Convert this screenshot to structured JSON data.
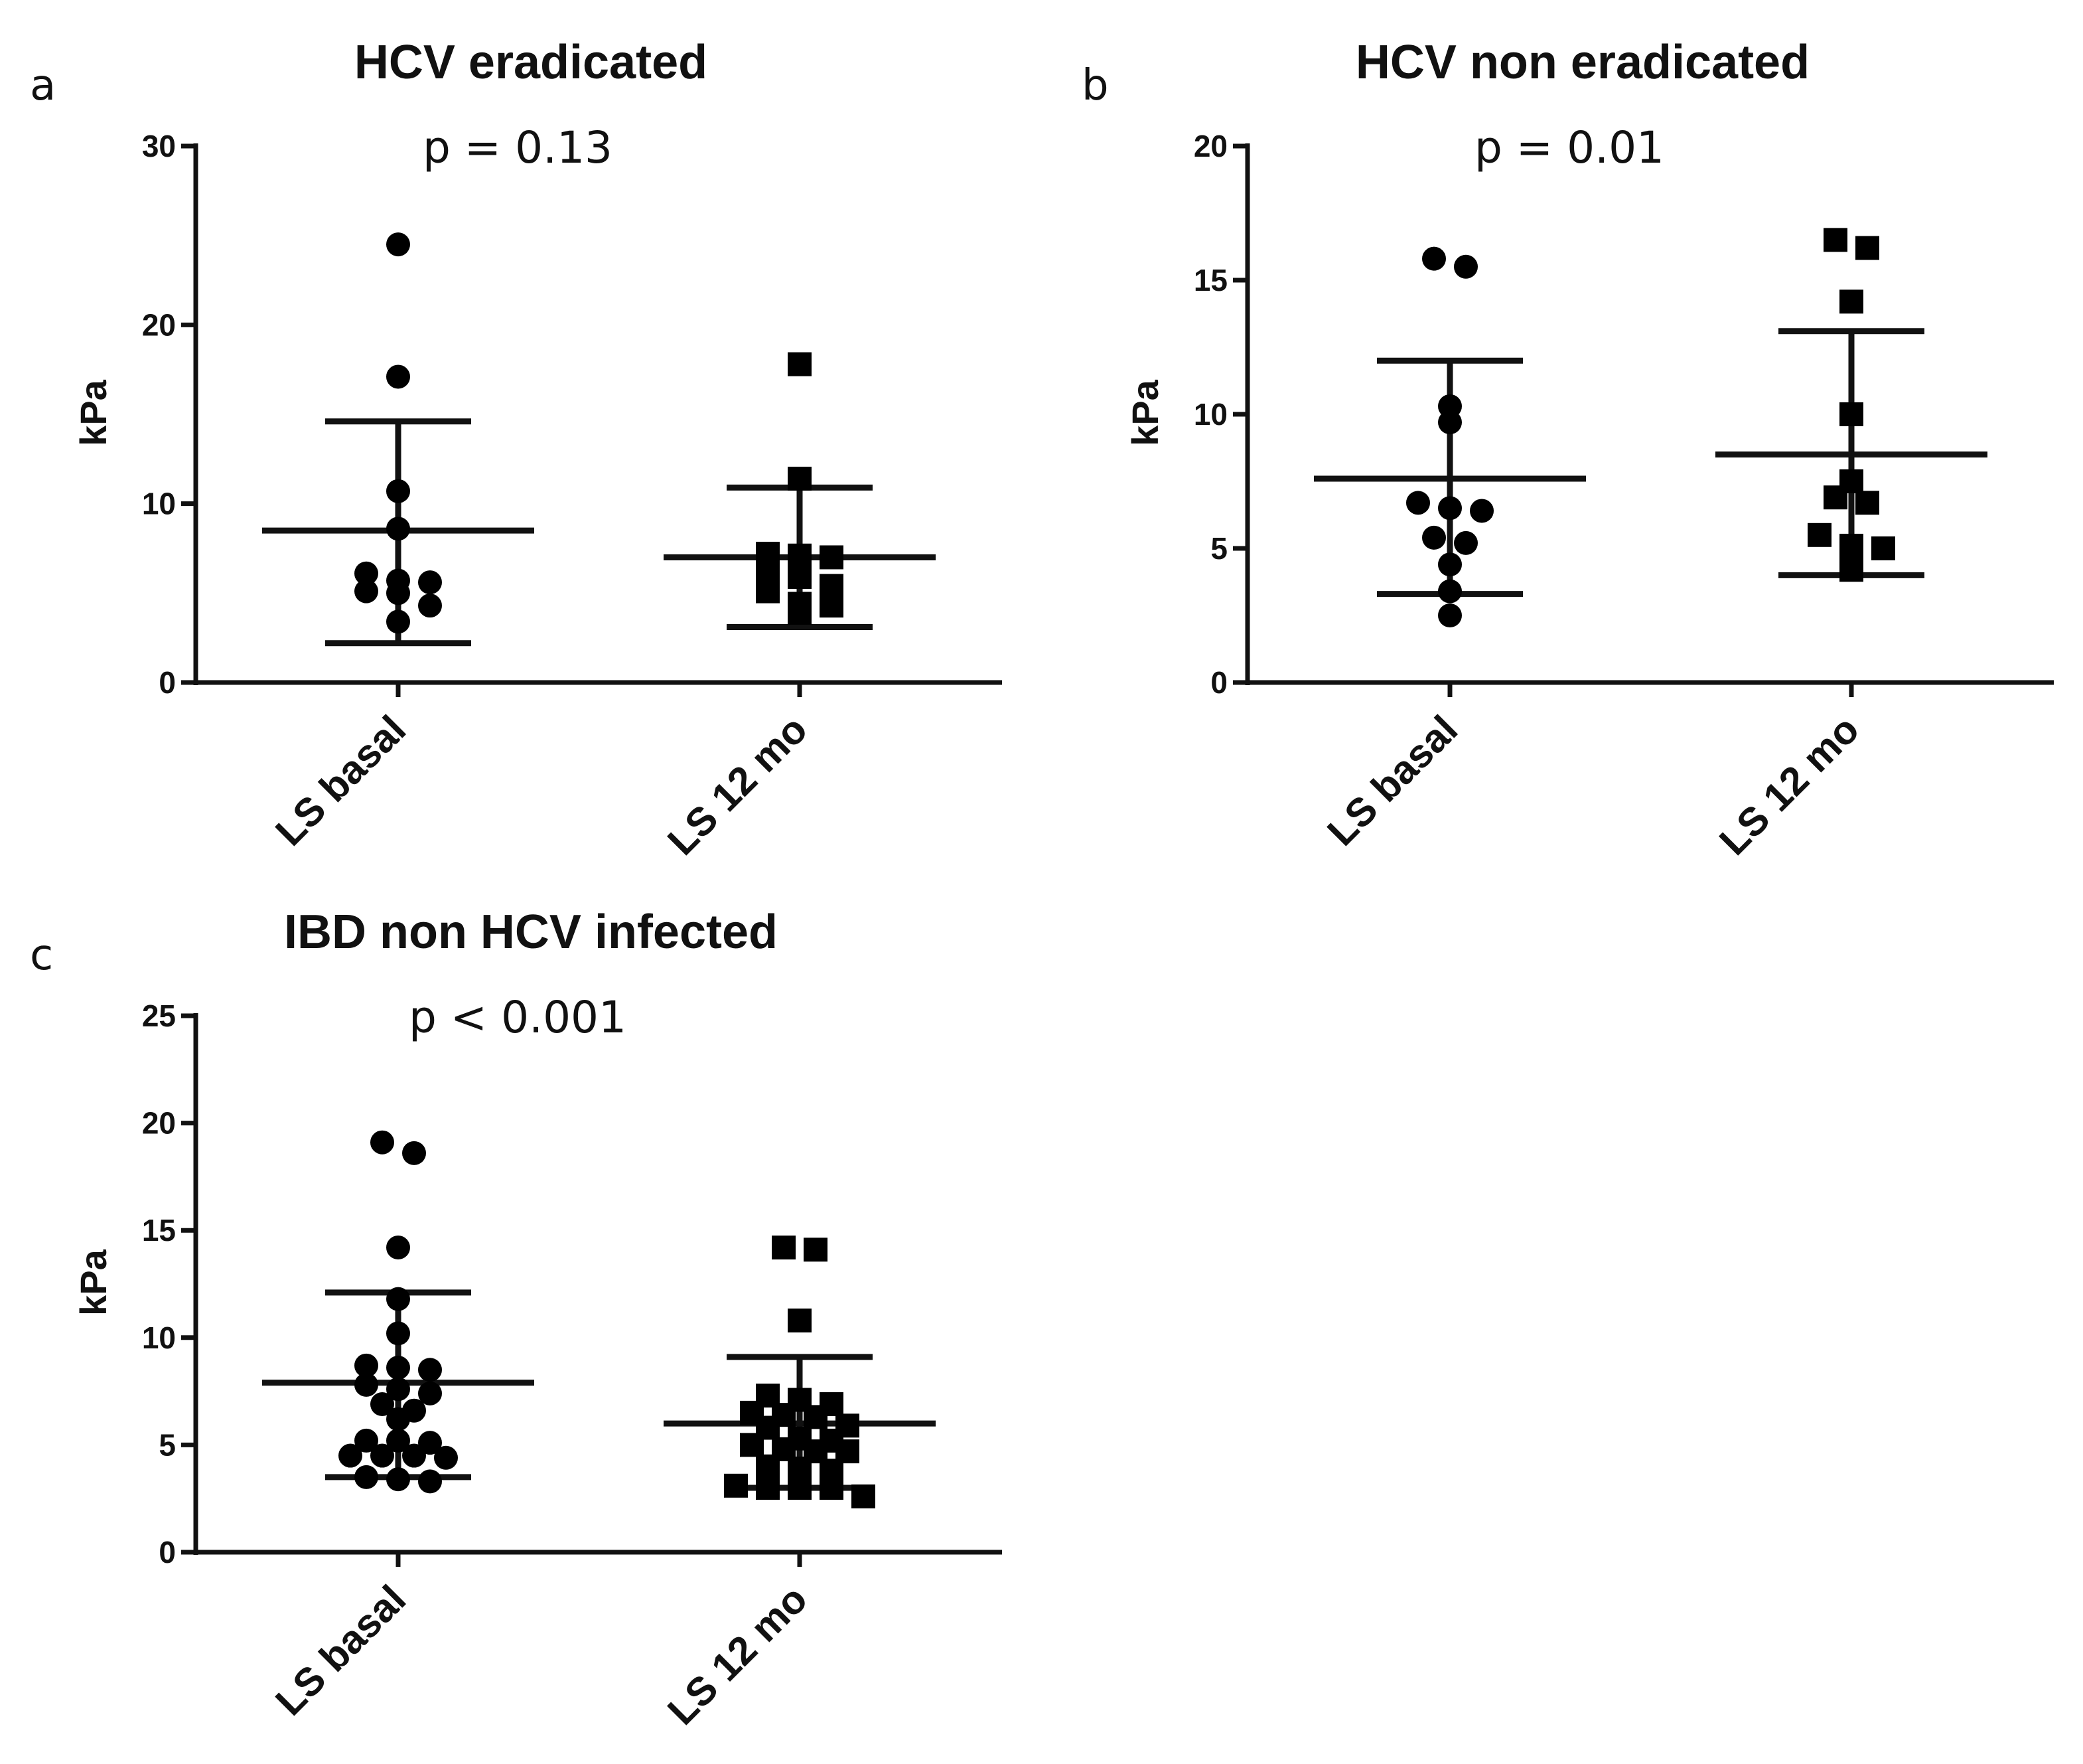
{
  "chart_data": [
    {
      "panel": "a",
      "type": "scatter",
      "title": "HCV eradicated",
      "annotation": "p = 0.13",
      "ylabel": "kPa",
      "ylim": [
        0,
        30
      ],
      "yticks": [
        0,
        10,
        20,
        30
      ],
      "ytick_labels": [
        "0",
        "10",
        "20",
        "30"
      ],
      "categories": [
        "LS basal",
        "LS 12 mo"
      ],
      "series": [
        {
          "name": "LS basal",
          "marker": "circle",
          "values": [
            24.5,
            17.1,
            10.7,
            8.6,
            6.1,
            5.6,
            5.7,
            5.1,
            5.0,
            4.3,
            3.4
          ],
          "mean": 8.5,
          "sd_low": 2.2,
          "sd_high": 14.6
        },
        {
          "name": "LS 12 mo",
          "marker": "square",
          "values": [
            17.8,
            11.4,
            7.1,
            7.2,
            7.0,
            6.1,
            5.9,
            5.4,
            5.1,
            4.3,
            4.4,
            3.9
          ],
          "mean": 7.0,
          "sd_low": 3.1,
          "sd_high": 10.9
        }
      ]
    },
    {
      "panel": "b",
      "type": "scatter",
      "title": "HCV non eradicated",
      "annotation": "p = 0.01",
      "ylabel": "kPa",
      "ylim": [
        0,
        20
      ],
      "yticks": [
        0,
        5,
        10,
        15,
        20
      ],
      "ytick_labels": [
        "0",
        "5",
        "10",
        "15",
        "20"
      ],
      "categories": [
        "LS basal",
        "LS 12 mo"
      ],
      "series": [
        {
          "name": "LS basal",
          "marker": "circle",
          "values": [
            15.8,
            15.5,
            10.3,
            9.7,
            6.7,
            6.4,
            6.5,
            5.2,
            5.4,
            4.4,
            3.4,
            2.5
          ],
          "mean": 7.6,
          "sd_low": 3.3,
          "sd_high": 12.0
        },
        {
          "name": "LS 12 mo",
          "marker": "square",
          "values": [
            16.5,
            16.2,
            14.2,
            10.0,
            7.5,
            6.9,
            6.7,
            5.5,
            5.0,
            4.9,
            5.1,
            4.2
          ],
          "mean": 8.5,
          "sd_low": 4.0,
          "sd_high": 13.1
        }
      ]
    },
    {
      "panel": "c",
      "type": "scatter",
      "title": "IBD non  HCV infected",
      "annotation": "p < 0.001",
      "ylabel": "kPa",
      "ylim": [
        0,
        25
      ],
      "yticks": [
        0,
        5,
        10,
        15,
        20,
        25
      ],
      "ytick_labels": [
        "0",
        "5",
        "10",
        "15",
        "20",
        "25"
      ],
      "categories": [
        "LS basal",
        "LS 12 mo"
      ],
      "series": [
        {
          "name": "LS basal",
          "marker": "circle",
          "values": [
            19.1,
            18.6,
            14.2,
            11.8,
            10.2,
            8.7,
            8.5,
            8.6,
            7.8,
            7.6,
            7.4,
            6.6,
            6.2,
            6.9,
            5.2,
            5.2,
            5.1,
            4.5,
            4.5,
            4.4,
            4.5,
            3.5,
            3.3,
            3.4
          ],
          "mean": 7.9,
          "sd_low": 3.5,
          "sd_high": 12.1
        },
        {
          "name": "LS 12 mo",
          "marker": "square",
          "values": [
            14.1,
            14.2,
            10.8,
            7.1,
            7.3,
            6.9,
            6.4,
            6.5,
            5.9,
            5.8,
            6.3,
            5.3,
            5.0,
            4.7,
            4.7,
            4.8,
            5.2,
            4.0,
            3.8,
            3.9,
            3.0,
            3.0,
            3.0,
            3.1,
            2.6
          ],
          "mean": 6.0,
          "sd_low": 3.0,
          "sd_high": 9.1
        }
      ]
    }
  ]
}
